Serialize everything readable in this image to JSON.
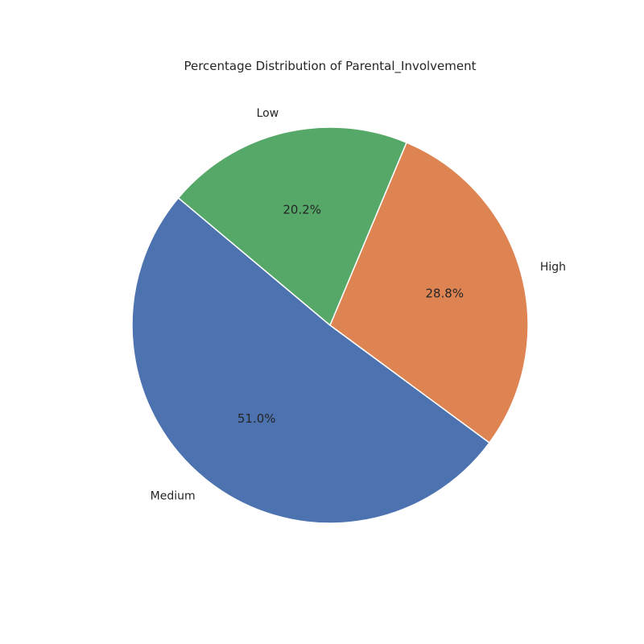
{
  "chart_data": {
    "type": "pie",
    "title": "Percentage Distribution of Parental_Involvement",
    "categories": [
      "Medium",
      "High",
      "Low"
    ],
    "values": [
      51.0,
      28.8,
      20.2
    ],
    "percent_labels": [
      "51.0%",
      "28.8%",
      "20.2%"
    ],
    "colors": [
      "#4c72b0",
      "#dd8452",
      "#55a868"
    ],
    "start_angle_deg": 140,
    "direction": "counterclockwise",
    "legend": "none"
  }
}
